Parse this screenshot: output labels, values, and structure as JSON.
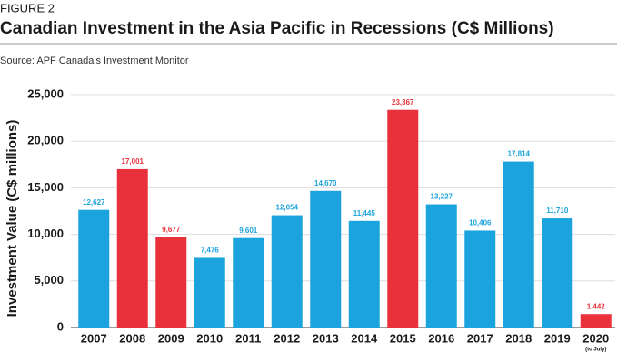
{
  "chart_data": {
    "type": "bar",
    "figure_label": "FIGURE 2",
    "title": "Canadian Investment in the Asia Pacific in Recessions (C$ Millions)",
    "source": "Source: APF Canada's Investment Monitor",
    "y_label": "Investment Value (C$ millions)",
    "categories": [
      "2007",
      "2008",
      "2009",
      "2010",
      "2011",
      "2012",
      "2013",
      "2014",
      "2015",
      "2016",
      "2017",
      "2018",
      "2019",
      "2020"
    ],
    "x_sublabels": [
      null,
      null,
      null,
      null,
      null,
      null,
      null,
      null,
      null,
      null,
      null,
      null,
      null,
      "(to July)"
    ],
    "values": [
      12627,
      17001,
      9677,
      7476,
      9601,
      12054,
      14670,
      11445,
      23367,
      13227,
      10406,
      17814,
      11710,
      1442
    ],
    "value_labels": [
      "12,627",
      "17,001",
      "9,677",
      "7,476",
      "9,601",
      "12,054",
      "14,670",
      "11,445",
      "23,367",
      "13,227",
      "10,406",
      "17,814",
      "11,710",
      "1,442"
    ],
    "colors": [
      "#1ba3dd",
      "#e8313b",
      "#e8313b",
      "#1ba3dd",
      "#1ba3dd",
      "#1ba3dd",
      "#1ba3dd",
      "#1ba3dd",
      "#e8313b",
      "#1ba3dd",
      "#1ba3dd",
      "#1ba3dd",
      "#1ba3dd",
      "#e8313b"
    ],
    "ylim": [
      0,
      25000
    ],
    "yticks": [
      0,
      {
        "value": 5000,
        "label": "5,000"
      },
      {
        "value": 10000,
        "label": "10,000"
      },
      {
        "value": 15000,
        "label": "15,000"
      },
      {
        "value": 20000,
        "label": "20,000"
      },
      {
        "value": 25000,
        "label": "25,000"
      }
    ],
    "grid": true
  }
}
